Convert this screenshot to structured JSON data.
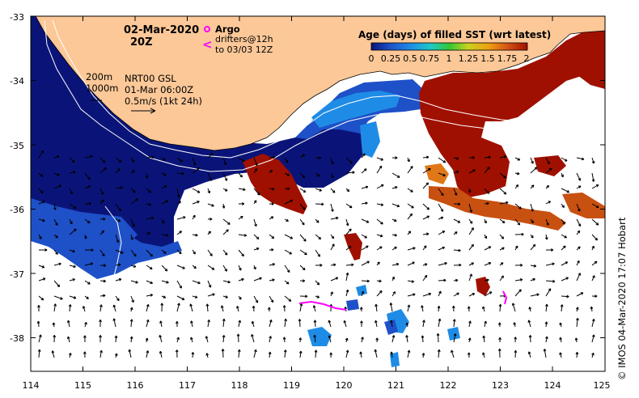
{
  "map": {
    "datetime": "02-Mar-2020",
    "hour": "20Z",
    "product": "NRT00 GSL",
    "product_time": "01-Mar 06:00Z",
    "vector_scale": "0.5m/s (1kt 24h)",
    "isobath_200": "200m",
    "isobath_1000": "1000m",
    "credit": "© IMOS 04-Mar-2020 17:07 Hobart"
  },
  "legend": {
    "argo_label": "Argo",
    "drifter_symbol": "<",
    "drifters_label_1": "drifters@12h",
    "drifters_label_2": "to 03/03 12Z",
    "colorbar_title": "Age (days) of filled SST (wrt latest)",
    "colorbar_ticks": [
      "0",
      "0.25",
      "0.5",
      "0.75",
      "1",
      "1.25",
      "1.5",
      "1.75",
      "2"
    ],
    "colorbar_min": 0,
    "colorbar_max": 2
  },
  "axes": {
    "x_ticks": [
      "114",
      "115",
      "116",
      "117",
      "118",
      "119",
      "120",
      "121",
      "122",
      "123",
      "124",
      "125"
    ],
    "y_ticks": [
      "-33",
      "-34",
      "-35",
      "-36",
      "-37",
      "-38"
    ],
    "lon_range": [
      114,
      125
    ],
    "lat_range": [
      -38.5,
      -33
    ]
  },
  "colors": {
    "land": "#fcc898",
    "age_0": "#0a1478",
    "age_0_3": "#1e50c8",
    "age_0_6": "#1e8ce6",
    "age_2": "#a01000",
    "age_1_7": "#c85010",
    "argo": "#ff00ff",
    "drifter": "#ff00ff"
  }
}
